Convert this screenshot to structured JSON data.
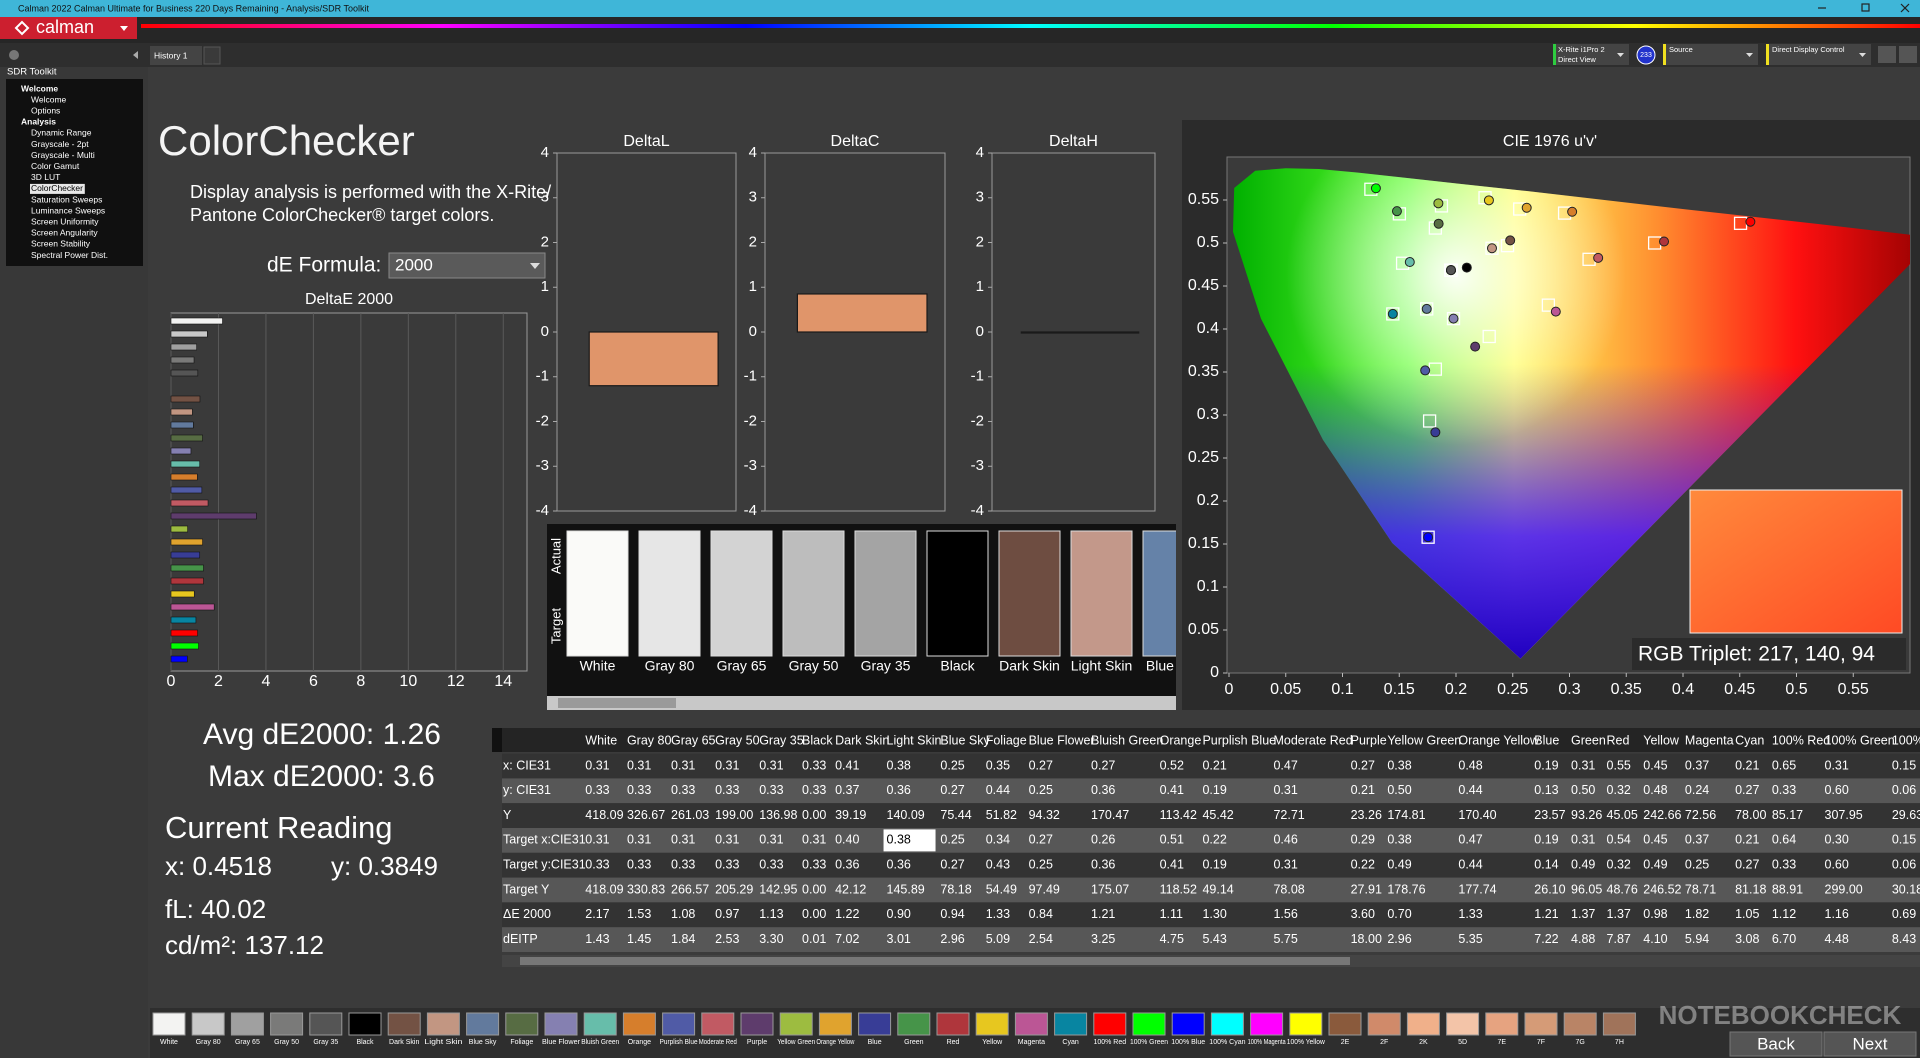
{
  "window": {
    "title": "Calman 2022 Calman Ultimate for Business 220 Days Remaining - Analysis/SDR Toolkit",
    "logo": "calman"
  },
  "sidebar": {
    "title": "SDR Toolkit",
    "items": [
      {
        "label": "Welcome",
        "bold": true
      },
      {
        "label": "Welcome"
      },
      {
        "label": "Options"
      },
      {
        "label": "Analysis",
        "bold": true
      },
      {
        "label": "Dynamic Range"
      },
      {
        "label": "Grayscale - 2pt"
      },
      {
        "label": "Grayscale - Multi"
      },
      {
        "label": "Color Gamut"
      },
      {
        "label": "3D LUT"
      },
      {
        "label": "ColorChecker",
        "selected": true
      },
      {
        "label": "Saturation Sweeps"
      },
      {
        "label": "Luminance Sweeps"
      },
      {
        "label": "Screen Uniformity"
      },
      {
        "label": "Screen Angularity"
      },
      {
        "label": "Screen Stability"
      },
      {
        "label": "Spectral Power Dist."
      }
    ]
  },
  "tabs": [
    "History 1"
  ],
  "devices": {
    "meter": "X-Rite i1Pro 2",
    "meter_mode": "Direct View",
    "meter_badge": "233",
    "source": "Source",
    "display": "Direct Display Control"
  },
  "page": {
    "heading": "ColorChecker",
    "description": [
      "Display analysis is performed with the X-Rite/",
      "Pantone ColorChecker® target colors."
    ],
    "formula_label": "dE Formula:",
    "formula_value": "2000"
  },
  "de_chart": {
    "title": "DeltaE 2000",
    "xlim": [
      0,
      15
    ],
    "xticks": [
      0,
      2,
      4,
      6,
      8,
      10,
      12,
      14
    ]
  },
  "delta_charts": [
    {
      "title": "DeltaL",
      "value": -1.2,
      "ylim": [
        -4,
        4
      ],
      "yticks": [
        -4,
        -3,
        -2,
        -1,
        0,
        1,
        2,
        3,
        4
      ],
      "color": "#e0956a"
    },
    {
      "title": "DeltaC",
      "value": 0.85,
      "ylim": [
        -4,
        4
      ],
      "yticks": [
        -4,
        -3,
        -2,
        -1,
        0,
        1,
        2,
        3,
        4
      ],
      "color": "#e0956a"
    },
    {
      "title": "DeltaH",
      "value": 0,
      "ylim": [
        -4,
        4
      ],
      "yticks": [
        -4,
        -3,
        -2,
        -1,
        0,
        1,
        2,
        3,
        4
      ],
      "color": "#e0956a"
    }
  ],
  "swatches": {
    "row_labels": [
      "Actual",
      "Target"
    ],
    "items": [
      {
        "label": "White",
        "color": "#fafaf8"
      },
      {
        "label": "Gray 80",
        "color": "#e6e6e6"
      },
      {
        "label": "Gray 65",
        "color": "#d3d3d3"
      },
      {
        "label": "Gray 50",
        "color": "#bdbdbd"
      },
      {
        "label": "Gray 35",
        "color": "#a4a4a4"
      },
      {
        "label": "Black",
        "color": "#000000"
      },
      {
        "label": "Dark Skin",
        "color": "#6e4d41"
      },
      {
        "label": "Light Skin",
        "color": "#c3988a"
      },
      {
        "label": "Blue Sky",
        "color": "#6582a8"
      }
    ]
  },
  "stats": {
    "avg": "Avg dE2000: 1.26",
    "max": "Max dE2000: 3.6",
    "reading_title": "Current Reading",
    "x": "x: 0.4518",
    "y": "y: 0.3849",
    "fl": "fL: 40.02",
    "cdm2": "cd/m²: 137.12"
  },
  "cie": {
    "title": "CIE 1976 u'v'",
    "xlim": [
      0,
      0.6
    ],
    "ylim": [
      0,
      0.6
    ],
    "xticks": [
      0,
      0.05,
      0.1,
      0.15,
      0.2,
      0.25,
      0.3,
      0.35,
      0.4,
      0.45,
      0.5,
      0.55
    ],
    "yticks": [
      0,
      0.05,
      0.1,
      0.15,
      0.2,
      0.25,
      0.3,
      0.35,
      0.4,
      0.45,
      0.5,
      0.55
    ],
    "rgb_triplet": "RGB Triplet: 217, 140, 94"
  },
  "table": {
    "columns": [
      "White",
      "Gray 80",
      "Gray 65",
      "Gray 50",
      "Gray 35",
      "Black",
      "Dark Skin",
      "Light Skin",
      "Blue Sky",
      "Foliage",
      "Blue Flower",
      "Bluish Green",
      "Orange",
      "Purplish Blue",
      "Moderate Red",
      "Purple",
      "Yellow Green",
      "Orange Yellow",
      "Blue",
      "Green",
      "Red",
      "Yellow",
      "Magenta",
      "Cyan",
      "100% Red",
      "100% Green",
      "100%"
    ],
    "rows": [
      {
        "label": "x: CIE31",
        "cells": [
          "0.31",
          "0.31",
          "0.31",
          "0.31",
          "0.31",
          "0.33",
          "0.41",
          "0.38",
          "0.25",
          "0.35",
          "0.27",
          "0.27",
          "0.52",
          "0.21",
          "0.47",
          "0.27",
          "0.38",
          "0.48",
          "0.19",
          "0.31",
          "0.55",
          "0.45",
          "0.37",
          "0.21",
          "0.65",
          "0.31",
          "0.15"
        ]
      },
      {
        "label": "y: CIE31",
        "cells": [
          "0.33",
          "0.33",
          "0.33",
          "0.33",
          "0.33",
          "0.33",
          "0.37",
          "0.36",
          "0.27",
          "0.44",
          "0.25",
          "0.36",
          "0.41",
          "0.19",
          "0.31",
          "0.21",
          "0.50",
          "0.44",
          "0.13",
          "0.50",
          "0.32",
          "0.48",
          "0.24",
          "0.27",
          "0.33",
          "0.60",
          "0.06"
        ]
      },
      {
        "label": "Y",
        "cells": [
          "418.09",
          "326.67",
          "261.03",
          "199.00",
          "136.98",
          "0.00",
          "39.19",
          "140.09",
          "75.44",
          "51.82",
          "94.32",
          "170.47",
          "113.42",
          "45.42",
          "72.71",
          "23.26",
          "174.81",
          "170.40",
          "23.57",
          "93.26",
          "45.05",
          "242.66",
          "72.56",
          "78.00",
          "85.17",
          "307.95",
          "29.63"
        ]
      },
      {
        "label": "Target x:CIE31",
        "cells": [
          "0.31",
          "0.31",
          "0.31",
          "0.31",
          "0.31",
          "0.31",
          "0.40",
          "0.38",
          "0.25",
          "0.34",
          "0.27",
          "0.26",
          "0.51",
          "0.22",
          "0.46",
          "0.29",
          "0.38",
          "0.47",
          "0.19",
          "0.31",
          "0.54",
          "0.45",
          "0.37",
          "0.21",
          "0.64",
          "0.30",
          "0.15"
        ]
      },
      {
        "label": "Target y:CIE31",
        "cells": [
          "0.33",
          "0.33",
          "0.33",
          "0.33",
          "0.33",
          "0.33",
          "0.36",
          "0.36",
          "0.27",
          "0.43",
          "0.25",
          "0.36",
          "0.41",
          "0.19",
          "0.31",
          "0.22",
          "0.49",
          "0.44",
          "0.14",
          "0.49",
          "0.32",
          "0.49",
          "0.25",
          "0.27",
          "0.33",
          "0.60",
          "0.06"
        ]
      },
      {
        "label": "Target Y",
        "cells": [
          "418.09",
          "330.83",
          "266.57",
          "205.29",
          "142.95",
          "0.00",
          "42.12",
          "145.89",
          "78.18",
          "54.49",
          "97.49",
          "175.07",
          "118.52",
          "49.14",
          "78.08",
          "27.91",
          "178.76",
          "177.74",
          "26.10",
          "96.05",
          "48.76",
          "246.52",
          "78.71",
          "81.18",
          "88.91",
          "299.00",
          "30.18"
        ]
      },
      {
        "label": "ΔE 2000",
        "cells": [
          "2.17",
          "1.53",
          "1.08",
          "0.97",
          "1.13",
          "0.00",
          "1.22",
          "0.90",
          "0.94",
          "1.33",
          "0.84",
          "1.21",
          "1.11",
          "1.30",
          "1.56",
          "3.60",
          "0.70",
          "1.33",
          "1.21",
          "1.37",
          "1.37",
          "0.98",
          "1.82",
          "1.05",
          "1.12",
          "1.16",
          "0.69"
        ]
      },
      {
        "label": "dEITP",
        "cells": [
          "1.43",
          "1.45",
          "1.84",
          "2.53",
          "3.30",
          "0.01",
          "7.02",
          "3.01",
          "2.96",
          "5.09",
          "2.54",
          "3.25",
          "4.75",
          "5.43",
          "5.75",
          "18.00",
          "2.96",
          "5.35",
          "7.22",
          "4.88",
          "7.87",
          "4.10",
          "5.94",
          "3.08",
          "6.70",
          "4.48",
          "8.43"
        ]
      }
    ]
  },
  "patch_bar": {
    "items": [
      {
        "label": "White",
        "color": "#f3f3f2"
      },
      {
        "label": "Gray 80",
        "color": "#c8c8c8"
      },
      {
        "label": "Gray 65",
        "color": "#a0a0a0"
      },
      {
        "label": "Gray 50",
        "color": "#7a7a79"
      },
      {
        "label": "Gray 35",
        "color": "#555555"
      },
      {
        "label": "Black",
        "color": "#000000"
      },
      {
        "label": "Dark Skin",
        "color": "#735244"
      },
      {
        "label": "Light Skin",
        "color": "#c29682"
      },
      {
        "label": "Blue Sky",
        "color": "#627a9d"
      },
      {
        "label": "Foliage",
        "color": "#576c43"
      },
      {
        "label": "Blue Flower",
        "color": "#8580b1"
      },
      {
        "label": "Bluish Green",
        "color": "#67bdaa"
      },
      {
        "label": "Orange",
        "color": "#d67e2c"
      },
      {
        "label": "Purplish Blue",
        "color": "#505ba6"
      },
      {
        "label": "Moderate Red",
        "color": "#c15a63"
      },
      {
        "label": "Purple",
        "color": "#5e3c6c"
      },
      {
        "label": "Yellow Green",
        "color": "#9dbc40"
      },
      {
        "label": "Orange Yellow",
        "color": "#e0a32e"
      },
      {
        "label": "Blue",
        "color": "#383d96"
      },
      {
        "label": "Green",
        "color": "#469449"
      },
      {
        "label": "Red",
        "color": "#af363c"
      },
      {
        "label": "Yellow",
        "color": "#e7c71f"
      },
      {
        "label": "Magenta",
        "color": "#bb5695"
      },
      {
        "label": "Cyan",
        "color": "#0885a1"
      },
      {
        "label": "100% Red",
        "color": "#ff0000"
      },
      {
        "label": "100% Green",
        "color": "#00ff00"
      },
      {
        "label": "100% Blue",
        "color": "#0000ff"
      },
      {
        "label": "100% Cyan",
        "color": "#00ffff"
      },
      {
        "label": "100% Magenta",
        "color": "#ff00ff"
      },
      {
        "label": "100% Yellow",
        "color": "#ffff00"
      },
      {
        "label": "2E",
        "color": "#8a5a3c"
      },
      {
        "label": "2F",
        "color": "#d08a6a"
      },
      {
        "label": "2K",
        "color": "#f0b08a"
      },
      {
        "label": "5D",
        "color": "#f3c4a8"
      },
      {
        "label": "7E",
        "color": "#e6a380"
      },
      {
        "label": "7F",
        "color": "#d59b77"
      },
      {
        "label": "7G",
        "color": "#b98466"
      },
      {
        "label": "7H",
        "color": "#a0735a"
      }
    ],
    "buttons": [
      "Back",
      "Next"
    ]
  },
  "watermark": "NOTEBOOKCHECK"
}
